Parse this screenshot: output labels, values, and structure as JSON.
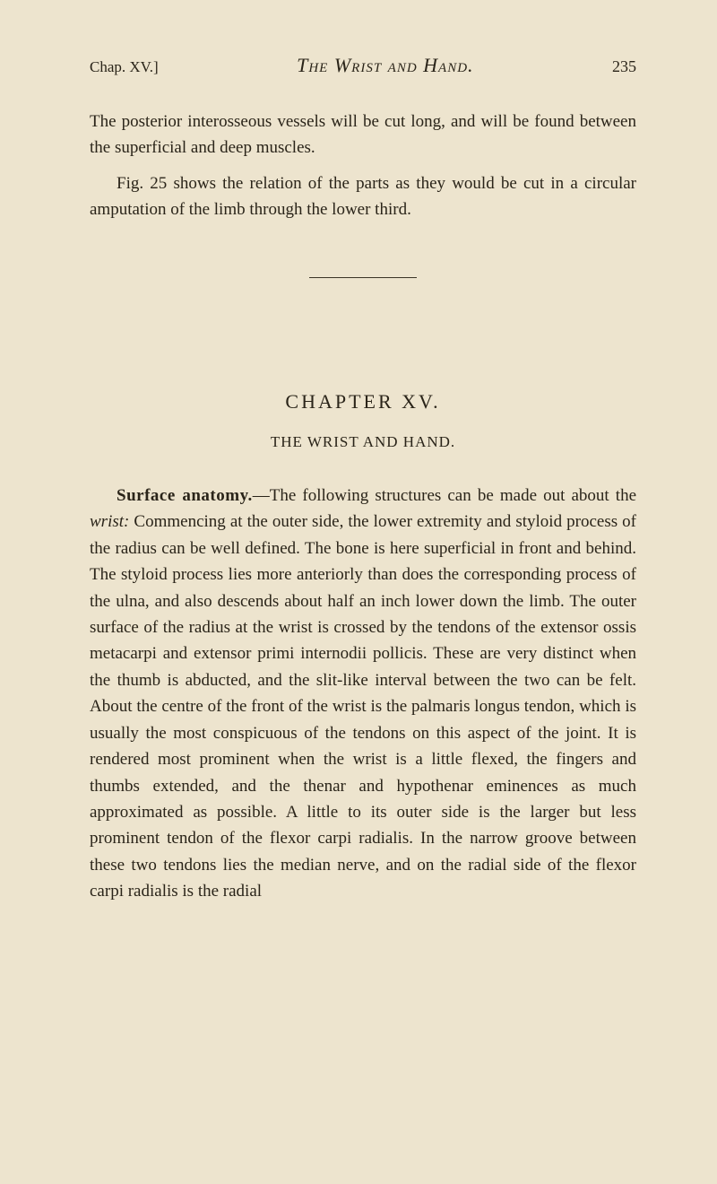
{
  "header": {
    "chapter_ref": "Chap. XV.]",
    "title": "The Wrist and Hand.",
    "page_num": "235"
  },
  "intro_paragraphs": [
    "The posterior interosseous vessels will be cut long, and will be found between the superficial and deep muscles.",
    "Fig. 25 shows the relation of the parts as they would be cut in a circular amputation of the limb through the lower third."
  ],
  "chapter": {
    "heading": "CHAPTER XV.",
    "sub": "THE WRIST AND HAND."
  },
  "body": {
    "lead_bold": "Surface anatomy.",
    "lead_dash": "—The following structures can be made out about the ",
    "lead_italic": "wrist:",
    "rest": " Commencing at the outer side, the lower extremity and styloid process of the radius can be well defined. The bone is here superficial in front and behind. The styloid process lies more anteriorly than does the corresponding process of the ulna, and also descends about half an inch lower down the limb. The outer surface of the radius at the wrist is crossed by the tendons of the extensor ossis metacarpi and extensor primi internodii pollicis. These are very distinct when the thumb is abducted, and the slit-like interval between the two can be felt. About the centre of the front of the wrist is the palmaris longus tendon, which is usually the most conspicuous of the tendons on this aspect of the joint. It is rendered most prominent when the wrist is a little flexed, the fingers and thumbs extended, and the thenar and hypothenar eminences as much approximated as possible. A little to its outer side is the larger but less prominent tendon of the flexor carpi radialis. In the narrow groove between these two tendons lies the median nerve, and on the radial side of the flexor carpi radialis is the radial"
  }
}
